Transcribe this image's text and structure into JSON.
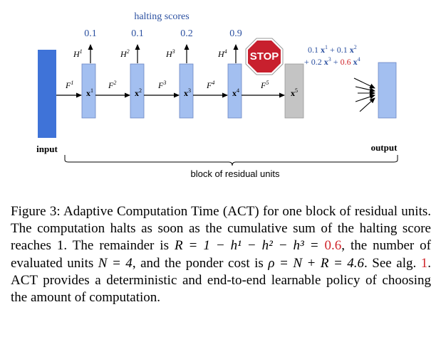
{
  "diagram": {
    "halting_title": "halting scores",
    "halting_scores": [
      "0.1",
      "0.1",
      "0.2",
      "0.9"
    ],
    "h_labels": [
      "H",
      "H",
      "H",
      "H"
    ],
    "h_supers": [
      "1",
      "2",
      "3",
      "4"
    ],
    "f_labels": [
      "F",
      "F",
      "F",
      "F",
      "F"
    ],
    "f_supers": [
      "1",
      "2",
      "3",
      "4",
      "5"
    ],
    "x_labels": [
      "x",
      "x",
      "x",
      "x",
      "x"
    ],
    "x_supers": [
      "1",
      "2",
      "3",
      "4",
      "5"
    ],
    "stop_sign": "STOP",
    "formula_line1": [
      {
        "coef": "0.1",
        "sup": "1",
        "sep": "+"
      },
      {
        "coef": "0.1",
        "sup": "2",
        "sep": ""
      }
    ],
    "formula_line2": [
      {
        "coef": "0.2",
        "sup": "3",
        "sep": "+"
      },
      {
        "coef": "0.6",
        "sup": "4",
        "sep": ""
      }
    ],
    "formula_var": "x",
    "input_label": "input",
    "output_label": "output",
    "block_label": "block of residual units",
    "colors": {
      "input": "#3f73d8",
      "unit": "#a3bff0",
      "skipped_unit": "#c4c4c4",
      "score_text": "#2a4fa0",
      "highlight_red": "#d0252b",
      "stop_red": "#c8202e"
    }
  },
  "caption": {
    "label": "Figure 3:",
    "text_a": "Adaptive Computation Time (ACT) for one block of residual units. The computation halts as soon as the cumulative sum of the halting score reaches 1. The remainder is",
    "remainder_eq": "R = 1 − h¹ − h² − h³ =",
    "remainder_value": "0.6",
    "text_b": ", the number of evaluated units",
    "units_eq": "N = 4",
    "text_c": ", and the ponder cost is",
    "ponder_eq": "ρ = N + R = 4.6",
    "text_d": ". See alg.",
    "alg_ref": "1",
    "text_e": ". ACT provides a deterministic and end-to-end learnable policy of choosing the amount of computation."
  }
}
